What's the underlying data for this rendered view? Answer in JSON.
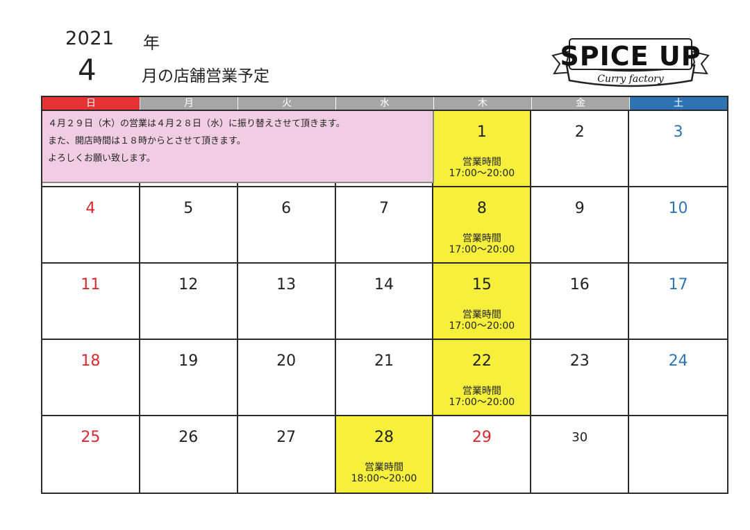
{
  "header": {
    "year": "2021",
    "year_suffix": "年",
    "month": "4",
    "month_suffix": "月の店舗営業予定"
  },
  "logo": {
    "name": "SPICE UP",
    "tagline": "Curry factory"
  },
  "colors": {
    "sunday": "#e63232",
    "saturday": "#2e74b5",
    "weekday_header": "#a6a6a6",
    "open_day": "#f6f03c",
    "notice_bg": "#f1cde3",
    "holiday": "#d9282f"
  },
  "weekdays": [
    "日",
    "月",
    "火",
    "水",
    "木",
    "金",
    "土"
  ],
  "notice": {
    "lines": [
      "４月２９日（木）の営業は４月２８日（水）に振り替えさせて頂きます。",
      "また、開店時間は１８時からとさせて頂きます。",
      "よろしくお願い致します。"
    ]
  },
  "weeks": [
    [
      {
        "day": "",
        "color": "none",
        "open": false,
        "hours_label": "",
        "hours": ""
      },
      {
        "day": "",
        "color": "none",
        "open": false,
        "hours_label": "",
        "hours": ""
      },
      {
        "day": "",
        "color": "none",
        "open": false,
        "hours_label": "",
        "hours": ""
      },
      {
        "day": "",
        "color": "none",
        "open": false,
        "hours_label": "",
        "hours": ""
      },
      {
        "day": "1",
        "color": "black",
        "open": true,
        "hours_label": "営業時間",
        "hours": "17:00〜20:00"
      },
      {
        "day": "2",
        "color": "black",
        "open": false,
        "hours_label": "",
        "hours": ""
      },
      {
        "day": "3",
        "color": "blue",
        "open": false,
        "hours_label": "",
        "hours": ""
      }
    ],
    [
      {
        "day": "4",
        "color": "red",
        "open": false,
        "hours_label": "",
        "hours": ""
      },
      {
        "day": "5",
        "color": "black",
        "open": false,
        "hours_label": "",
        "hours": ""
      },
      {
        "day": "6",
        "color": "black",
        "open": false,
        "hours_label": "",
        "hours": ""
      },
      {
        "day": "7",
        "color": "black",
        "open": false,
        "hours_label": "",
        "hours": ""
      },
      {
        "day": "8",
        "color": "black",
        "open": true,
        "hours_label": "営業時間",
        "hours": "17:00〜20:00"
      },
      {
        "day": "9",
        "color": "black",
        "open": false,
        "hours_label": "",
        "hours": ""
      },
      {
        "day": "10",
        "color": "blue",
        "open": false,
        "hours_label": "",
        "hours": ""
      }
    ],
    [
      {
        "day": "11",
        "color": "red",
        "open": false,
        "hours_label": "",
        "hours": ""
      },
      {
        "day": "12",
        "color": "black",
        "open": false,
        "hours_label": "",
        "hours": ""
      },
      {
        "day": "13",
        "color": "black",
        "open": false,
        "hours_label": "",
        "hours": ""
      },
      {
        "day": "14",
        "color": "black",
        "open": false,
        "hours_label": "",
        "hours": ""
      },
      {
        "day": "15",
        "color": "black",
        "open": true,
        "hours_label": "営業時間",
        "hours": "17:00〜20:00"
      },
      {
        "day": "16",
        "color": "black",
        "open": false,
        "hours_label": "",
        "hours": ""
      },
      {
        "day": "17",
        "color": "blue",
        "open": false,
        "hours_label": "",
        "hours": ""
      }
    ],
    [
      {
        "day": "18",
        "color": "red",
        "open": false,
        "hours_label": "",
        "hours": ""
      },
      {
        "day": "19",
        "color": "black",
        "open": false,
        "hours_label": "",
        "hours": ""
      },
      {
        "day": "20",
        "color": "black",
        "open": false,
        "hours_label": "",
        "hours": ""
      },
      {
        "day": "21",
        "color": "black",
        "open": false,
        "hours_label": "",
        "hours": ""
      },
      {
        "day": "22",
        "color": "black",
        "open": true,
        "hours_label": "営業時間",
        "hours": "17:00〜20:00"
      },
      {
        "day": "23",
        "color": "black",
        "open": false,
        "hours_label": "",
        "hours": ""
      },
      {
        "day": "24",
        "color": "blue",
        "open": false,
        "hours_label": "",
        "hours": ""
      }
    ],
    [
      {
        "day": "25",
        "color": "red",
        "open": false,
        "hours_label": "",
        "hours": ""
      },
      {
        "day": "26",
        "color": "black",
        "open": false,
        "hours_label": "",
        "hours": ""
      },
      {
        "day": "27",
        "color": "black",
        "open": false,
        "hours_label": "",
        "hours": ""
      },
      {
        "day": "28",
        "color": "black",
        "open": true,
        "hours_label": "営業時間",
        "hours": "18:00〜20:00"
      },
      {
        "day": "29",
        "color": "red",
        "open": false,
        "hours_label": "",
        "hours": ""
      },
      {
        "day": "30",
        "color": "black",
        "open": false,
        "hours_label": "",
        "hours": ""
      },
      {
        "day": "",
        "color": "none",
        "open": false,
        "hours_label": "",
        "hours": ""
      }
    ]
  ]
}
